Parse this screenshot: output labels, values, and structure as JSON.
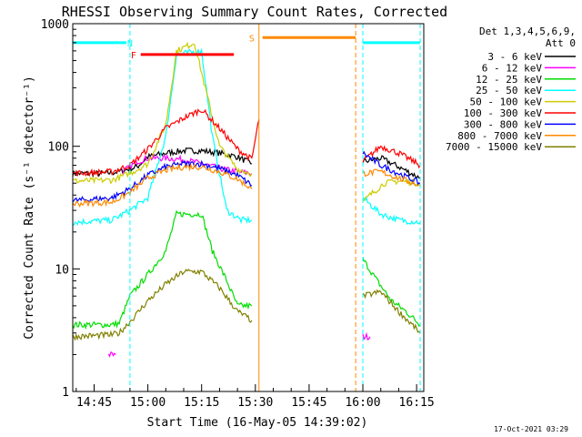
{
  "chart_data": {
    "type": "line",
    "title": "RHESSI Observing Summary Count Rates, Corrected",
    "xlabel": "Start Time (16-May-05 14:39:02)",
    "ylabel": "Corrected Count Rate (s⁻¹ detector⁻¹)",
    "yscale": "log",
    "ylim": [
      1,
      1000
    ],
    "yticks": [
      "1",
      "10",
      "100",
      "1000"
    ],
    "xlim": [
      "14:39:02",
      "16:17"
    ],
    "xticks": [
      "14:45",
      "15:00",
      "15:15",
      "15:30",
      "15:45",
      "16:00",
      "16:15"
    ],
    "legend": {
      "header": [
        "Det 1,3,4,5,6,9,",
        "Att 0"
      ],
      "placement": "right"
    },
    "footer_date": "17-Oct-2021 03:29",
    "series": [
      {
        "name": "3 - 6 keV",
        "color": "#000000",
        "segments": [
          {
            "x": [
              "14:39",
              "14:48",
              "14:52",
              "14:57",
              "15:00",
              "15:05",
              "15:10",
              "15:15",
              "15:20",
              "15:25",
              "15:29"
            ],
            "y": [
              60,
              60,
              62,
              68,
              82,
              88,
              92,
              92,
              88,
              82,
              72
            ]
          },
          {
            "x": [
              "16:00",
              "16:05",
              "16:10",
              "16:16"
            ],
            "y": [
              75,
              80,
              68,
              55
            ]
          }
        ]
      },
      {
        "name": "6 - 12 keV",
        "color": "#ff00ff",
        "segments": [
          {
            "x": [
              "14:53",
              "14:57",
              "15:00",
              "15:05",
              "15:10",
              "15:15",
              "15:20",
              "15:25",
              "15:29"
            ],
            "y": [
              62,
              75,
              80,
              80,
              78,
              72,
              66,
              62,
              60
            ]
          },
          {
            "x": [
              "14:49",
              "14:51"
            ],
            "y": [
              2,
              2
            ]
          },
          {
            "x": [
              "16:00",
              "16:02"
            ],
            "y": [
              2.8,
              2.8
            ]
          }
        ]
      },
      {
        "name": "12 - 25 keV",
        "color": "#00dd00",
        "segments": [
          {
            "x": [
              "14:39",
              "14:50",
              "14:52",
              "14:55",
              "15:00",
              "15:05",
              "15:08",
              "15:15",
              "15:18",
              "15:22",
              "15:25",
              "15:29"
            ],
            "y": [
              3.5,
              3.5,
              3.6,
              6,
              9,
              14,
              28,
              28,
              14,
              8,
              5,
              5
            ]
          },
          {
            "x": [
              "16:00",
              "16:04",
              "16:08",
              "16:12",
              "16:16"
            ],
            "y": [
              12,
              8,
              5.5,
              4.5,
              3.5
            ]
          }
        ]
      },
      {
        "name": "25 - 50 keV",
        "color": "#00ffff",
        "segments": [
          {
            "x": [
              "14:39",
              "14:50",
              "14:55",
              "15:00",
              "15:05",
              "15:08",
              "15:15",
              "15:18",
              "15:22",
              "15:26",
              "15:29"
            ],
            "y": [
              24,
              25,
              30,
              38,
              120,
              560,
              600,
              120,
              30,
              25,
              25
            ]
          },
          {
            "x": [
              "16:00",
              "16:05",
              "16:10",
              "16:16"
            ],
            "y": [
              38,
              28,
              25,
              24
            ]
          }
        ]
      },
      {
        "name": "50 - 100 keV",
        "color": "#cccc00",
        "segments": [
          {
            "x": [
              "14:39",
              "14:50",
              "14:55",
              "15:00",
              "15:05",
              "15:08",
              "15:13",
              "15:16",
              "15:20",
              "15:25",
              "15:29"
            ],
            "y": [
              52,
              53,
              60,
              72,
              150,
              600,
              700,
              300,
              100,
              65,
              60
            ]
          },
          {
            "x": [
              "16:00",
              "16:02",
              "16:06",
              "16:10",
              "16:16"
            ],
            "y": [
              35,
              40,
              50,
              52,
              50
            ]
          }
        ]
      },
      {
        "name": "100 - 300 keV",
        "color": "#ff0000",
        "segments": [
          {
            "x": [
              "14:39",
              "14:50",
              "14:55",
              "15:00",
              "15:05",
              "15:10",
              "15:15",
              "15:20",
              "15:25",
              "15:29",
              "15:31"
            ],
            "y": [
              60,
              62,
              70,
              95,
              140,
              170,
              200,
              140,
              95,
              78,
              165
            ]
          },
          {
            "x": [
              "16:00",
              "16:05",
              "16:10",
              "16:16"
            ],
            "y": [
              75,
              100,
              88,
              70
            ]
          }
        ]
      },
      {
        "name": "300 - 800 keV",
        "color": "#0000ff",
        "segments": [
          {
            "x": [
              "14:39",
              "14:50",
              "14:55",
              "15:00",
              "15:05",
              "15:10",
              "15:15",
              "15:20",
              "15:25",
              "15:29"
            ],
            "y": [
              36,
              38,
              45,
              58,
              68,
              72,
              72,
              66,
              58,
              48
            ]
          },
          {
            "x": [
              "16:00",
              "16:05",
              "16:10",
              "16:16"
            ],
            "y": [
              88,
              70,
              60,
              50
            ]
          }
        ]
      },
      {
        "name": "800 - 7000 keV",
        "color": "#ff8800",
        "segments": [
          {
            "x": [
              "14:39",
              "14:50",
              "14:55",
              "15:00",
              "15:05",
              "15:10",
              "15:15",
              "15:20",
              "15:25",
              "15:29"
            ],
            "y": [
              34,
              35,
              42,
              55,
              64,
              68,
              68,
              62,
              54,
              45
            ]
          },
          {
            "x": [
              "16:00",
              "16:05",
              "16:10",
              "16:16"
            ],
            "y": [
              60,
              62,
              55,
              48
            ]
          }
        ]
      },
      {
        "name": "7000 - 15000 keV",
        "color": "#808000",
        "segments": [
          {
            "x": [
              "14:39",
              "14:50",
              "14:52",
              "14:56",
              "15:00",
              "15:05",
              "15:10",
              "15:15",
              "15:20",
              "15:25",
              "15:29"
            ],
            "y": [
              2.8,
              2.9,
              3,
              4,
              5.5,
              7.5,
              9.5,
              9.5,
              7,
              4.5,
              3.8
            ]
          },
          {
            "x": [
              "16:00",
              "16:05",
              "16:10",
              "16:16"
            ],
            "y": [
              6,
              6.5,
              4.5,
              3
            ]
          }
        ]
      }
    ],
    "flag_bars": [
      {
        "label": "",
        "color": "#00ffff",
        "x": [
          "14:39",
          "14:54"
        ],
        "y": 700
      },
      {
        "label": "N",
        "color": "#00ffff",
        "x": null,
        "y": null,
        "label_at": "14:55"
      },
      {
        "label": "",
        "color": "#00ffff",
        "x": [
          "16:00",
          "16:16"
        ],
        "y": 700
      },
      {
        "label": "F",
        "color": "#ff0000",
        "x": [
          "14:58",
          "15:24"
        ],
        "y": 560,
        "label_at": "14:56"
      },
      {
        "label": "S",
        "color": "#ff8800",
        "x": [
          "15:32",
          "15:58"
        ],
        "y": 770,
        "label_at": "15:29"
      }
    ],
    "vertical_markers": [
      {
        "color": "#00ffff",
        "style": "dashed",
        "x": "14:55"
      },
      {
        "color": "#00ffff",
        "style": "dashed",
        "x": "16:00"
      },
      {
        "color": "#00ffff",
        "style": "dashed",
        "x": "16:16"
      },
      {
        "color": "#ff8800",
        "style": "solid",
        "x": "15:31"
      },
      {
        "color": "#ff8800",
        "style": "dashed",
        "x": "15:58"
      }
    ]
  }
}
